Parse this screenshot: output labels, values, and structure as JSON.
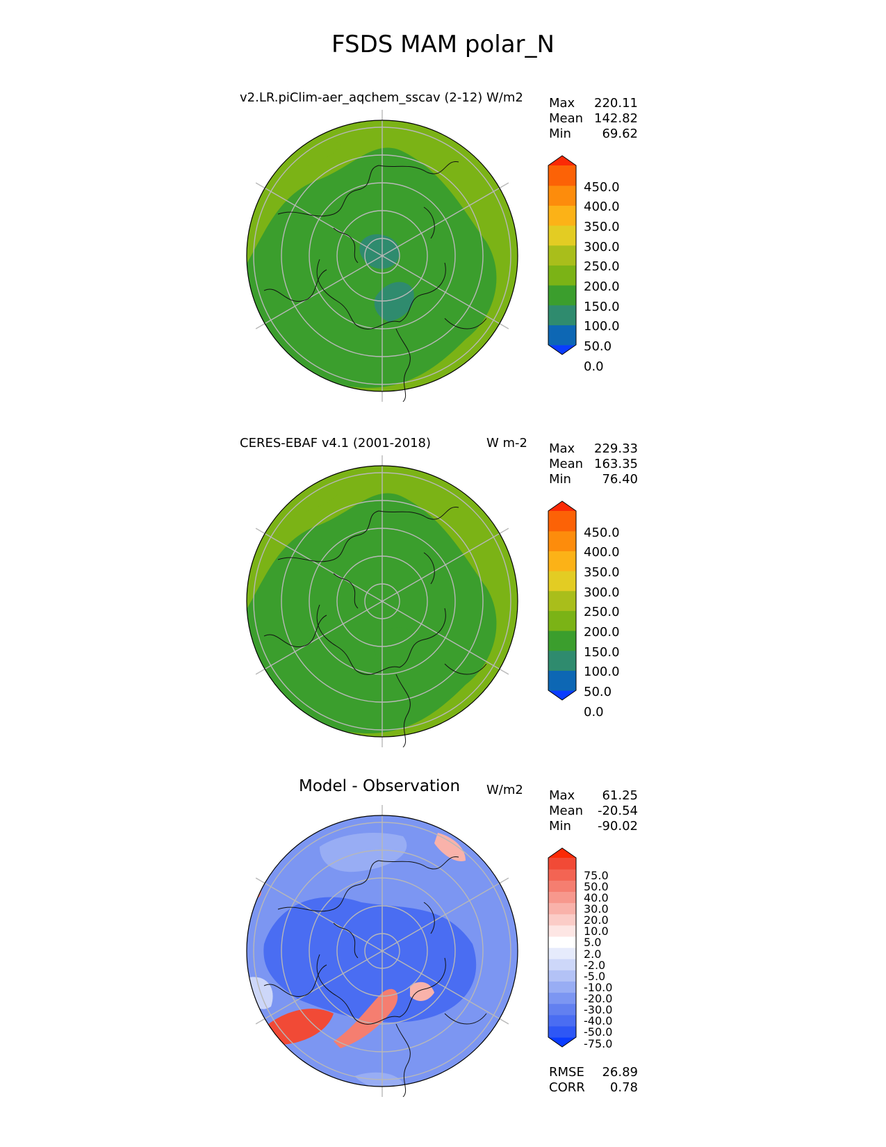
{
  "figure_title": "FSDS MAM polar_N",
  "panels": [
    {
      "title_left": "v2.LR.piClim-aer_aqchem_sscav (2-12)",
      "units": "W/m2",
      "stats": {
        "max_label": "Max",
        "max": "220.11",
        "mean_label": "Mean",
        "mean": "142.82",
        "min_label": "Min",
        "min": "69.62"
      },
      "colorbar": {
        "colors": [
          "#0a3cff",
          "#0d67b4",
          "#2f8b6e",
          "#3b9e2d",
          "#7bb316",
          "#a9be1b",
          "#e3cc23",
          "#fcb217",
          "#fd8c0c",
          "#fc6206",
          "#fb2a06"
        ],
        "labels": [
          "450.0",
          "400.0",
          "350.0",
          "300.0",
          "250.0",
          "200.0",
          "150.0",
          "100.0",
          "50.0",
          "0.0"
        ]
      },
      "map_colors": {
        "base": "#7bb316",
        "mid": "#3b9e2d",
        "core": "#2f8b6e"
      }
    },
    {
      "title_left": "CERES-EBAF v4.1 (2001-2018)",
      "units": "W m-2",
      "stats": {
        "max_label": "Max",
        "max": "229.33",
        "mean_label": "Mean",
        "mean": "163.35",
        "min_label": "Min",
        "min": "76.40"
      },
      "colorbar": {
        "colors": [
          "#0a3cff",
          "#0d67b4",
          "#2f8b6e",
          "#3b9e2d",
          "#7bb316",
          "#a9be1b",
          "#e3cc23",
          "#fcb217",
          "#fd8c0c",
          "#fc6206",
          "#fb2a06"
        ],
        "labels": [
          "450.0",
          "400.0",
          "350.0",
          "300.0",
          "250.0",
          "200.0",
          "150.0",
          "100.0",
          "50.0",
          "0.0"
        ]
      },
      "map_colors": {
        "base": "#7bb316",
        "mid": "#3b9e2d",
        "core": "#3b9e2d"
      }
    },
    {
      "title_center": "Model - Observation",
      "units": "W/m2",
      "stats": {
        "max_label": "Max",
        "max": "61.25",
        "mean_label": "Mean",
        "mean": "-20.54",
        "min_label": "Min",
        "min": "-90.02"
      },
      "colorbar": {
        "colors": [
          "#0a3cff",
          "#2e57f5",
          "#4a6df2",
          "#6280f0",
          "#7c96f2",
          "#98adf4",
          "#b3c2f6",
          "#cdd7f9",
          "#e6ebfc",
          "#ffffff",
          "#fde6e4",
          "#fbccc7",
          "#f9b2aa",
          "#f7988d",
          "#f57e70",
          "#f36453",
          "#f14a36",
          "#fb2a06"
        ],
        "labels": [
          "75.0",
          "50.0",
          "40.0",
          "30.0",
          "20.0",
          "10.0",
          "5.0",
          "2.0",
          "-2.0",
          "-5.0",
          "-10.0",
          "-20.0",
          "-30.0",
          "-40.0",
          "-50.0",
          "-75.0"
        ]
      },
      "metrics": {
        "rmse_label": "RMSE",
        "rmse": "26.89",
        "corr_label": "CORR",
        "corr": "0.78"
      }
    }
  ]
}
